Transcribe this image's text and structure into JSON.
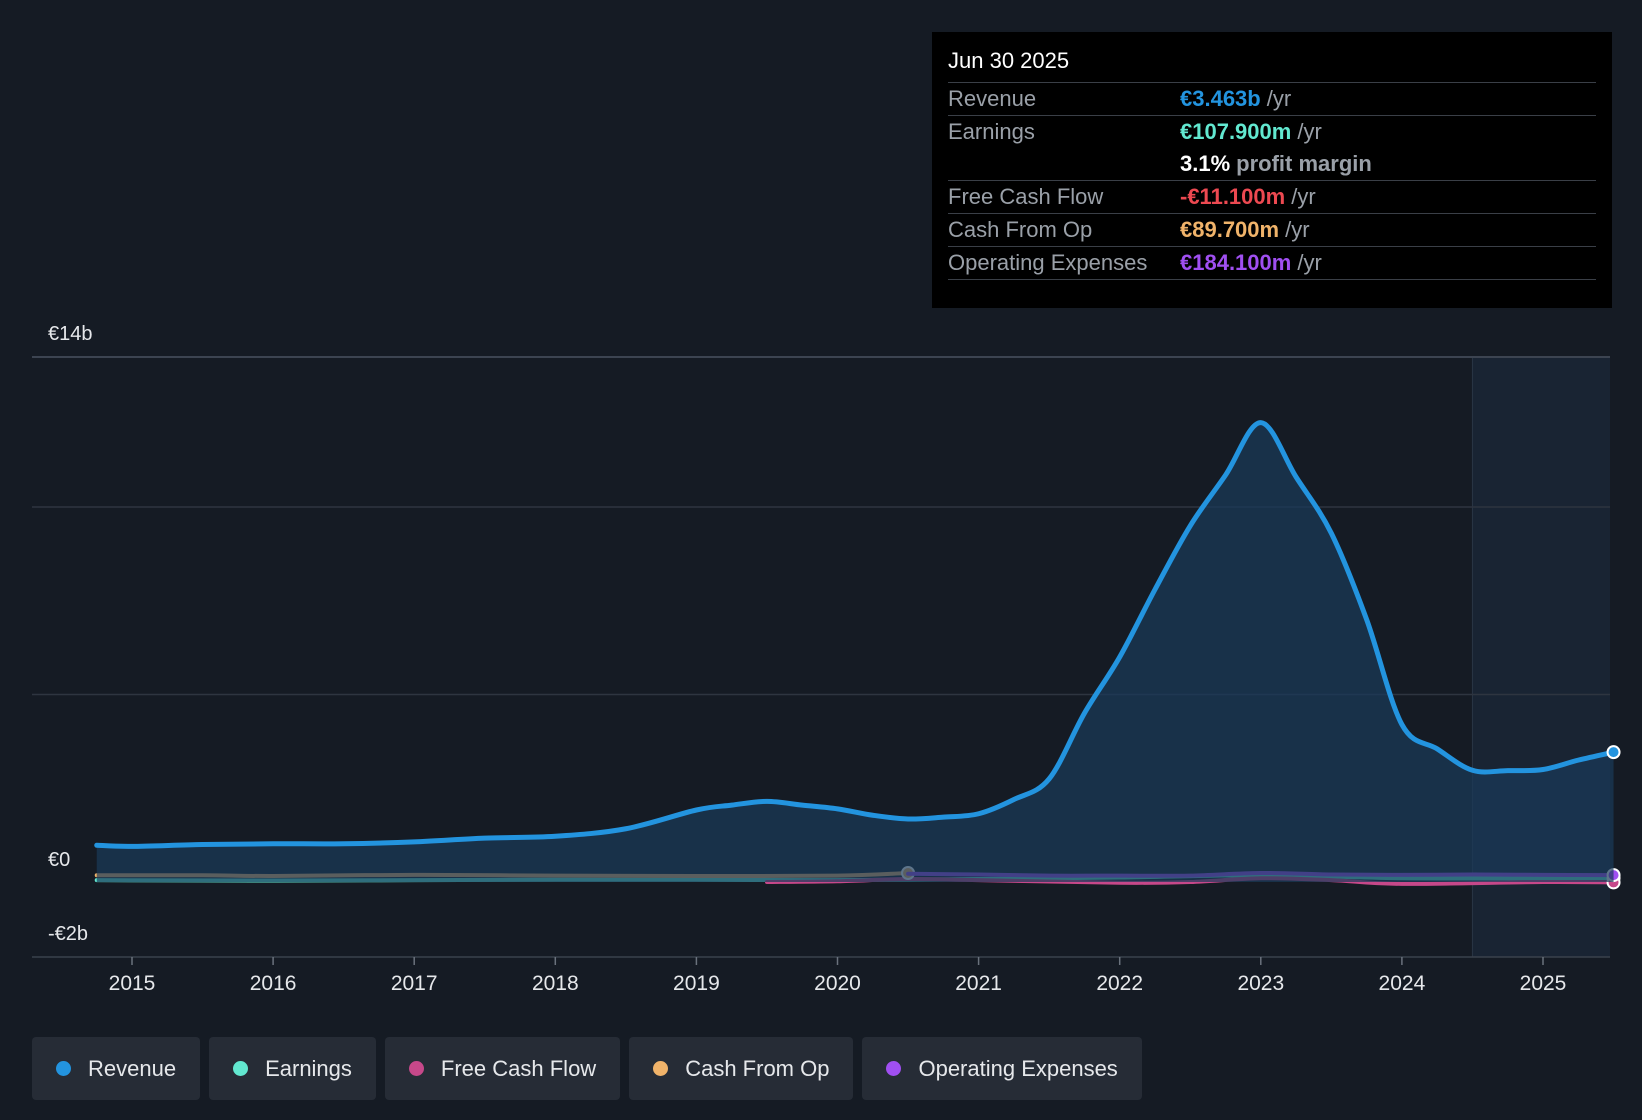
{
  "tooltip": {
    "date": "Jun 30 2025",
    "rows": [
      {
        "label": "Revenue",
        "value": "€3.463b",
        "unit": "/yr",
        "color": "#2394df"
      },
      {
        "label": "Earnings",
        "value": "€107.900m",
        "unit": "/yr",
        "color": "#62e8d0"
      },
      {
        "label": "",
        "value": "3.1%",
        "unit": "profit margin",
        "color": "#ffffff"
      },
      {
        "label": "Free Cash Flow",
        "value": "-€11.100m",
        "unit": "/yr",
        "color": "#ed4951"
      },
      {
        "label": "Cash From Op",
        "value": "€89.700m",
        "unit": "/yr",
        "color": "#f0b36a"
      },
      {
        "label": "Operating Expenses",
        "value": "€184.100m",
        "unit": "/yr",
        "color": "#a04ff1"
      }
    ]
  },
  "legend": [
    {
      "label": "Revenue",
      "color": "#2394df"
    },
    {
      "label": "Earnings",
      "color": "#62e8d0"
    },
    {
      "label": "Free Cash Flow",
      "color": "#c6488a"
    },
    {
      "label": "Cash From Op",
      "color": "#f0b36a"
    },
    {
      "label": "Operating Expenses",
      "color": "#a04ff1"
    }
  ],
  "chart_data": {
    "type": "area",
    "title": "",
    "xlabel": "",
    "ylabel": "",
    "y_tick_labels": [
      "€14b",
      "€0",
      "-€2b"
    ],
    "ylim": [
      -2,
      14
    ],
    "xlim": [
      2014.3,
      2025.5
    ],
    "x_tick_labels": [
      "2015",
      "2016",
      "2017",
      "2018",
      "2019",
      "2020",
      "2021",
      "2022",
      "2023",
      "2024",
      "2025"
    ],
    "grid": true,
    "highlight_region": [
      2024.5,
      2025.5
    ],
    "series": [
      {
        "name": "Revenue",
        "color": "#2394df",
        "fill": true,
        "x": [
          2014.75,
          2015.0,
          2015.5,
          2016.0,
          2016.5,
          2017.0,
          2017.5,
          2018.0,
          2018.5,
          2019.0,
          2019.25,
          2019.5,
          2019.75,
          2020.0,
          2020.25,
          2020.5,
          2020.75,
          2021.0,
          2021.25,
          2021.5,
          2021.75,
          2022.0,
          2022.25,
          2022.5,
          2022.75,
          2023.0,
          2023.25,
          2023.5,
          2023.75,
          2024.0,
          2024.25,
          2024.5,
          2024.75,
          2025.0,
          2025.25,
          2025.5
        ],
        "values": [
          0.98,
          0.95,
          1.0,
          1.02,
          1.02,
          1.07,
          1.17,
          1.22,
          1.42,
          1.92,
          2.05,
          2.15,
          2.05,
          1.95,
          1.78,
          1.68,
          1.73,
          1.82,
          2.2,
          2.75,
          4.5,
          6.0,
          7.8,
          9.5,
          10.85,
          12.25,
          10.8,
          9.3,
          7.0,
          4.2,
          3.55,
          2.98,
          2.97,
          3.0,
          3.25,
          3.463
        ]
      },
      {
        "name": "Earnings",
        "color": "#62e8d0",
        "fill": false,
        "x": [
          2014.75,
          2016.0,
          2017.0,
          2018.0,
          2019.0,
          2020.0,
          2021.0,
          2022.0,
          2023.0,
          2024.0,
          2025.0,
          2025.5
        ],
        "values": [
          0.05,
          0.04,
          0.05,
          0.06,
          0.06,
          0.05,
          0.08,
          0.12,
          0.18,
          0.1,
          0.1,
          0.108
        ]
      },
      {
        "name": "Free Cash Flow",
        "color": "#c6488a",
        "fill": false,
        "x": [
          2019.5,
          2020.0,
          2020.5,
          2021.0,
          2022.0,
          2022.5,
          2023.0,
          2023.5,
          2024.0,
          2025.0,
          2025.5
        ],
        "values": [
          0.0,
          0.02,
          0.08,
          0.05,
          -0.02,
          0.0,
          0.1,
          0.05,
          -0.05,
          0.0,
          -0.011
        ]
      },
      {
        "name": "Cash From Op",
        "color": "#f0b36a",
        "fill": false,
        "x": [
          2014.75,
          2015.5,
          2016.0,
          2017.0,
          2018.0,
          2019.0,
          2020.0,
          2020.5
        ],
        "values": [
          0.18,
          0.18,
          0.16,
          0.19,
          0.17,
          0.16,
          0.17,
          0.24
        ]
      },
      {
        "name": "Operating Expenses",
        "color": "#a04ff1",
        "fill": false,
        "x": [
          2020.5,
          2021.0,
          2021.5,
          2022.0,
          2022.5,
          2023.0,
          2023.5,
          2024.0,
          2024.5,
          2025.0,
          2025.5
        ],
        "values": [
          0.22,
          0.2,
          0.17,
          0.17,
          0.17,
          0.24,
          0.2,
          0.19,
          0.2,
          0.19,
          0.184
        ]
      }
    ]
  }
}
